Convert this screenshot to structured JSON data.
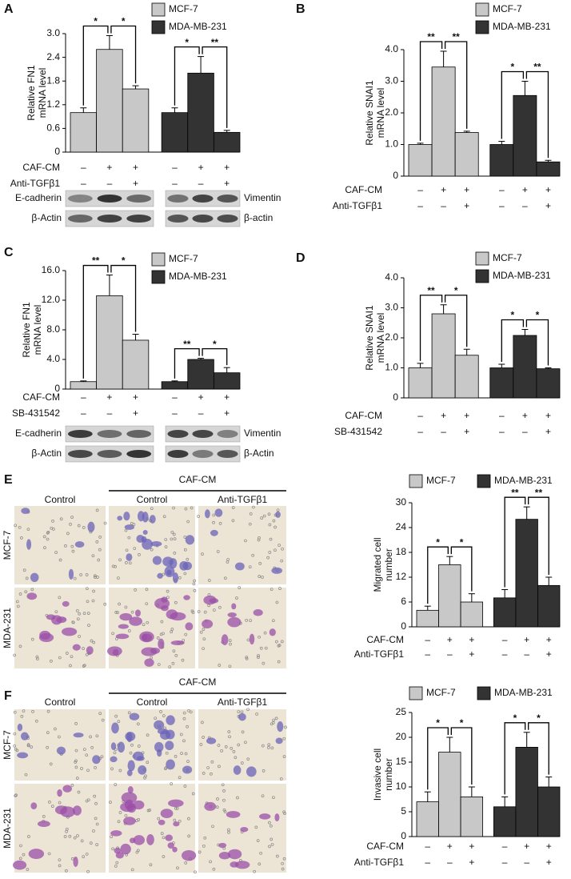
{
  "chart_data": [
    {
      "type": "bar",
      "panel": "A",
      "ylabel_lines": [
        "Relative FN1",
        "mRNA level"
      ],
      "categories": [
        null,
        null,
        null,
        null,
        null,
        null
      ],
      "ylim": [
        0,
        3.0
      ],
      "yticks": [
        0,
        0.6,
        1.2,
        1.8,
        2.4,
        {
          "value": 3.0,
          "label": "3.0"
        }
      ],
      "legend": "top-right",
      "series": [
        {
          "name": "MCF-7",
          "color": "#c8c8c8",
          "values": [
            1.0,
            2.6,
            1.6,
            null,
            null,
            null
          ],
          "errors": [
            0.12,
            0.35,
            0.08,
            null,
            null,
            null
          ]
        },
        {
          "name": "MDA-MB-231",
          "color": "#333333",
          "values": [
            null,
            null,
            null,
            1.0,
            2.0,
            0.5
          ],
          "errors": [
            null,
            null,
            null,
            0.12,
            0.42,
            0.05
          ]
        }
      ],
      "significance": [
        "*",
        "*",
        "*",
        "**"
      ],
      "conditions": [
        {
          "name": "CAF-CM",
          "signs": [
            "–",
            "+",
            "+",
            "–",
            "+",
            "+"
          ]
        },
        {
          "name": "Anti-TGFβ1",
          "signs": [
            "–",
            "–",
            "+",
            "–",
            "–",
            "+"
          ]
        }
      ]
    },
    {
      "type": "bar",
      "panel": "B",
      "ylabel_lines": [
        "Relative SNAI1",
        "mRNA level"
      ],
      "categories": [
        null,
        null,
        null,
        null,
        null,
        null
      ],
      "ylim": [
        0,
        4.0
      ],
      "yticks": [
        0,
        {
          "value": 1.0,
          "label": "1.0"
        },
        {
          "value": 2.0,
          "label": "2.0"
        },
        {
          "value": 3.0,
          "label": "3.0"
        },
        {
          "value": 4.0,
          "label": "4.0"
        }
      ],
      "legend": "top-right",
      "series": [
        {
          "name": "MCF-7",
          "color": "#c8c8c8",
          "values": [
            1.0,
            3.45,
            1.38,
            null,
            null,
            null
          ],
          "errors": [
            0.04,
            0.5,
            0.04,
            null,
            null,
            null
          ]
        },
        {
          "name": "MDA-MB-231",
          "color": "#333333",
          "values": [
            null,
            null,
            null,
            1.0,
            2.55,
            0.45
          ],
          "errors": [
            null,
            null,
            null,
            0.1,
            0.45,
            0.05
          ]
        }
      ],
      "significance": [
        "**",
        "**",
        "*",
        "**"
      ],
      "conditions": [
        {
          "name": "CAF-CM",
          "signs": [
            "–",
            "+",
            "+",
            "–",
            "+",
            "+"
          ]
        },
        {
          "name": "Anti-TGFβ1",
          "signs": [
            "–",
            "–",
            "+",
            "–",
            "–",
            "+"
          ]
        }
      ]
    },
    {
      "type": "bar",
      "panel": "C",
      "ylabel_lines": [
        "Relative FN1",
        "mRNA level"
      ],
      "categories": [
        null,
        null,
        null,
        null,
        null,
        null
      ],
      "ylim": [
        0,
        16.0
      ],
      "yticks": [
        0,
        {
          "value": 4.0,
          "label": "4.0"
        },
        {
          "value": 8.0,
          "label": "8.0"
        },
        {
          "value": 12.0,
          "label": "12.0"
        },
        {
          "value": 16.0,
          "label": "16.0"
        }
      ],
      "legend": "top-right",
      "series": [
        {
          "name": "MCF-7",
          "color": "#c8c8c8",
          "values": [
            1.0,
            12.6,
            6.6,
            null,
            null,
            null
          ],
          "errors": [
            0.1,
            2.8,
            0.8,
            null,
            null,
            null
          ]
        },
        {
          "name": "MDA-MB-231",
          "color": "#333333",
          "values": [
            null,
            null,
            null,
            1.0,
            4.0,
            2.2
          ],
          "errors": [
            null,
            null,
            null,
            0.1,
            0.15,
            0.7
          ]
        }
      ],
      "significance": [
        "**",
        "*",
        "**",
        "*"
      ],
      "conditions": [
        {
          "name": "CAF-CM",
          "signs": [
            "–",
            "+",
            "+",
            "–",
            "+",
            "+"
          ]
        },
        {
          "name": "SB-431542",
          "signs": [
            "–",
            "–",
            "+",
            "–",
            "–",
            "+"
          ]
        }
      ]
    },
    {
      "type": "bar",
      "panel": "D",
      "ylabel_lines": [
        "Relative SNAI1",
        "mRNA level"
      ],
      "categories": [
        null,
        null,
        null,
        null,
        null,
        null
      ],
      "ylim": [
        0,
        4.0
      ],
      "yticks": [
        0,
        {
          "value": 1.0,
          "label": "1.0"
        },
        {
          "value": 2.0,
          "label": "2.0"
        },
        {
          "value": 3.0,
          "label": "3.0"
        },
        {
          "value": 4.0,
          "label": "4.0"
        }
      ],
      "legend": "top-right",
      "series": [
        {
          "name": "MCF-7",
          "color": "#c8c8c8",
          "values": [
            1.0,
            2.8,
            1.42,
            null,
            null,
            null
          ],
          "errors": [
            0.15,
            0.3,
            0.2,
            null,
            null,
            null
          ]
        },
        {
          "name": "MDA-MB-231",
          "color": "#333333",
          "values": [
            null,
            null,
            null,
            1.0,
            2.08,
            0.97
          ],
          "errors": [
            null,
            null,
            null,
            0.12,
            0.2,
            0.03
          ]
        }
      ],
      "significance": [
        "**",
        "*",
        "*",
        "*"
      ],
      "conditions": [
        {
          "name": "CAF-CM",
          "signs": [
            "–",
            "+",
            "+",
            "–",
            "+",
            "+"
          ]
        },
        {
          "name": "SB-431542",
          "signs": [
            "–",
            "–",
            "+",
            "–",
            "–",
            "+"
          ]
        }
      ]
    },
    {
      "type": "bar",
      "panel": "E",
      "ylabel_lines": [
        "Migrated cell",
        "number"
      ],
      "categories": [
        null,
        null,
        null,
        null,
        null,
        null
      ],
      "ylim": [
        0,
        30
      ],
      "yticks": [
        0,
        6,
        12,
        18,
        24,
        30
      ],
      "legend": "top",
      "series": [
        {
          "name": "MCF-7",
          "color": "#c8c8c8",
          "values": [
            4,
            15,
            6,
            null,
            null,
            null
          ],
          "errors": [
            1,
            2,
            2,
            null,
            null,
            null
          ]
        },
        {
          "name": "MDA-MB-231",
          "color": "#333333",
          "values": [
            null,
            null,
            null,
            7,
            26,
            10
          ],
          "errors": [
            null,
            null,
            null,
            2,
            3,
            2
          ]
        }
      ],
      "significance": [
        "*",
        "*",
        "**",
        "**"
      ],
      "conditions": [
        {
          "name": "CAF-CM",
          "signs": [
            "–",
            "+",
            "+",
            "–",
            "+",
            "+"
          ]
        },
        {
          "name": "Anti-TGFβ1",
          "signs": [
            "–",
            "–",
            "+",
            "–",
            "–",
            "+"
          ]
        }
      ]
    },
    {
      "type": "bar",
      "panel": "F",
      "ylabel_lines": [
        "Invasive cell",
        "number"
      ],
      "categories": [
        null,
        null,
        null,
        null,
        null,
        null
      ],
      "ylim": [
        0,
        25
      ],
      "yticks": [
        0,
        5,
        10,
        15,
        20,
        25
      ],
      "legend": "top",
      "series": [
        {
          "name": "MCF-7",
          "color": "#c8c8c8",
          "values": [
            7,
            17,
            8,
            null,
            null,
            null
          ],
          "errors": [
            2,
            3,
            2,
            null,
            null,
            null
          ]
        },
        {
          "name": "MDA-MB-231",
          "color": "#333333",
          "values": [
            null,
            null,
            null,
            6,
            18,
            10
          ],
          "errors": [
            null,
            null,
            null,
            2,
            3,
            2
          ]
        }
      ],
      "significance": [
        "*",
        "*",
        "*",
        "*"
      ],
      "conditions": [
        {
          "name": "CAF-CM",
          "signs": [
            "–",
            "+",
            "+",
            "–",
            "+",
            "+"
          ]
        },
        {
          "name": "Anti-TGFβ1",
          "signs": [
            "–",
            "–",
            "+",
            "–",
            "–",
            "+"
          ]
        }
      ]
    }
  ],
  "blots": [
    {
      "left": [
        "E-cadherin",
        "β-Actin"
      ],
      "right": [
        "Vimentin",
        "β-actin"
      ]
    },
    {
      "left": [
        "E-cadherin",
        "β-Actin"
      ],
      "right": [
        "Vimentin",
        "β-Actin"
      ]
    }
  ],
  "micrographs": [
    {
      "group": "CAF-CM",
      "columns": [
        "Control",
        "Control",
        "Anti-TGFβ1"
      ],
      "rows": [
        "MCF-7",
        "MDA-231"
      ]
    },
    {
      "group": "CAF-CM",
      "columns": [
        "Control",
        "Control",
        "Anti-TGFβ1"
      ],
      "rows": [
        "MCF-7",
        "MDA-231"
      ]
    }
  ]
}
